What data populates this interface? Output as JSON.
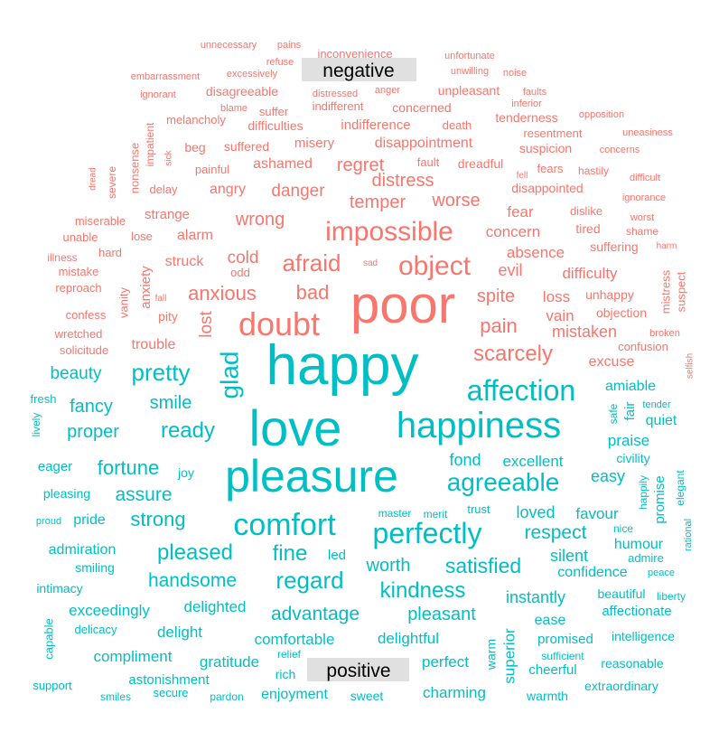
{
  "chart_data": {
    "type": "comparison-wordcloud",
    "groups": [
      {
        "name": "negative",
        "color": "#F8766D"
      },
      {
        "name": "positive",
        "color": "#00BFC4"
      }
    ],
    "words": [
      {
        "w": "poor",
        "g": "negative",
        "s": 58
      },
      {
        "w": "doubt",
        "g": "negative",
        "s": 36
      },
      {
        "w": "impossible",
        "g": "negative",
        "s": 30
      },
      {
        "w": "object",
        "g": "negative",
        "s": 30
      },
      {
        "w": "afraid",
        "g": "negative",
        "s": 26
      },
      {
        "w": "scarcely",
        "g": "negative",
        "s": 24
      },
      {
        "w": "anxious",
        "g": "negative",
        "s": 22
      },
      {
        "w": "bad",
        "g": "negative",
        "s": 22
      },
      {
        "w": "pain",
        "g": "negative",
        "s": 22
      },
      {
        "w": "spite",
        "g": "negative",
        "s": 20
      },
      {
        "w": "wrong",
        "g": "negative",
        "s": 20
      },
      {
        "w": "distress",
        "g": "negative",
        "s": 20
      },
      {
        "w": "temper",
        "g": "negative",
        "s": 20
      },
      {
        "w": "worse",
        "g": "negative",
        "s": 20
      },
      {
        "w": "regret",
        "g": "negative",
        "s": 20
      },
      {
        "w": "danger",
        "g": "negative",
        "s": 19
      },
      {
        "w": "cold",
        "g": "negative",
        "s": 19
      },
      {
        "w": "lost",
        "g": "negative",
        "s": 19
      },
      {
        "w": "evil",
        "g": "negative",
        "s": 18
      },
      {
        "w": "mistaken",
        "g": "negative",
        "s": 18
      },
      {
        "w": "loss",
        "g": "negative",
        "s": 17
      },
      {
        "w": "vain",
        "g": "negative",
        "s": 17
      },
      {
        "w": "difficulty",
        "g": "negative",
        "s": 17
      },
      {
        "w": "concern",
        "g": "negative",
        "s": 17
      },
      {
        "w": "absence",
        "g": "negative",
        "s": 17
      },
      {
        "w": "fear",
        "g": "negative",
        "s": 17
      },
      {
        "w": "disappointment",
        "g": "negative",
        "s": 16
      },
      {
        "w": "struck",
        "g": "negative",
        "s": 16
      },
      {
        "w": "alarm",
        "g": "negative",
        "s": 16
      },
      {
        "w": "ashamed",
        "g": "negative",
        "s": 16
      },
      {
        "w": "angry",
        "g": "negative",
        "s": 16
      },
      {
        "w": "trouble",
        "g": "negative",
        "s": 16
      },
      {
        "w": "excuse",
        "g": "negative",
        "s": 16
      },
      {
        "w": "strange",
        "g": "negative",
        "s": 15
      },
      {
        "w": "indifference",
        "g": "negative",
        "s": 15
      },
      {
        "w": "misery",
        "g": "negative",
        "s": 15
      },
      {
        "w": "anxiety",
        "g": "negative",
        "s": 15
      },
      {
        "w": "disappointed",
        "g": "negative",
        "s": 14
      },
      {
        "w": "suspicion",
        "g": "negative",
        "s": 14
      },
      {
        "w": "dreadful",
        "g": "negative",
        "s": 14
      },
      {
        "w": "unhappy",
        "g": "negative",
        "s": 14
      },
      {
        "w": "objection",
        "g": "negative",
        "s": 14
      },
      {
        "w": "suffering",
        "g": "negative",
        "s": 14
      },
      {
        "w": "pity",
        "g": "negative",
        "s": 14
      },
      {
        "w": "tired",
        "g": "negative",
        "s": 14
      },
      {
        "w": "disagreeable",
        "g": "negative",
        "s": 14
      },
      {
        "w": "unpleasant",
        "g": "negative",
        "s": 14
      },
      {
        "w": "difficulties",
        "g": "negative",
        "s": 14
      },
      {
        "w": "concerned",
        "g": "negative",
        "s": 14
      },
      {
        "w": "tenderness",
        "g": "negative",
        "s": 14
      },
      {
        "w": "suffered",
        "g": "negative",
        "s": 14
      },
      {
        "w": "beg",
        "g": "negative",
        "s": 14
      },
      {
        "w": "painful",
        "g": "negative",
        "s": 13
      },
      {
        "w": "delay",
        "g": "negative",
        "s": 13
      },
      {
        "w": "dislike",
        "g": "negative",
        "s": 13
      },
      {
        "w": "fears",
        "g": "negative",
        "s": 13
      },
      {
        "w": "resentment",
        "g": "negative",
        "s": 13
      },
      {
        "w": "indifferent",
        "g": "negative",
        "s": 13
      },
      {
        "w": "melancholy",
        "g": "negative",
        "s": 13
      },
      {
        "w": "suffer",
        "g": "negative",
        "s": 13
      },
      {
        "w": "death",
        "g": "negative",
        "s": 13
      },
      {
        "w": "fault",
        "g": "negative",
        "s": 13
      },
      {
        "w": "confusion",
        "g": "negative",
        "s": 13
      },
      {
        "w": "solicitude",
        "g": "negative",
        "s": 13
      },
      {
        "w": "confess",
        "g": "negative",
        "s": 13
      },
      {
        "w": "wretched",
        "g": "negative",
        "s": 13
      },
      {
        "w": "reproach",
        "g": "negative",
        "s": 13
      },
      {
        "w": "mistake",
        "g": "negative",
        "s": 13
      },
      {
        "w": "odd",
        "g": "negative",
        "s": 13
      },
      {
        "w": "hard",
        "g": "negative",
        "s": 13
      },
      {
        "w": "lose",
        "g": "negative",
        "s": 13
      },
      {
        "w": "miserable",
        "g": "negative",
        "s": 13
      },
      {
        "w": "unable",
        "g": "negative",
        "s": 13
      },
      {
        "w": "illness",
        "g": "negative",
        "s": 12
      },
      {
        "w": "vanity",
        "g": "negative",
        "s": 13
      },
      {
        "w": "mistress",
        "g": "negative",
        "s": 13
      },
      {
        "w": "suspect",
        "g": "negative",
        "s": 13
      },
      {
        "w": "nonsense",
        "g": "negative",
        "s": 13
      },
      {
        "w": "impatient",
        "g": "negative",
        "s": 12
      },
      {
        "w": "severe",
        "g": "negative",
        "s": 12
      },
      {
        "w": "hastily",
        "g": "negative",
        "s": 12
      },
      {
        "w": "shame",
        "g": "negative",
        "s": 12
      },
      {
        "w": "worst",
        "g": "negative",
        "s": 11
      },
      {
        "w": "ignorance",
        "g": "negative",
        "s": 11
      },
      {
        "w": "difficult",
        "g": "negative",
        "s": 11
      },
      {
        "w": "concerns",
        "g": "negative",
        "s": 11
      },
      {
        "w": "uneasiness",
        "g": "negative",
        "s": 11
      },
      {
        "w": "opposition",
        "g": "negative",
        "s": 11
      },
      {
        "w": "faults",
        "g": "negative",
        "s": 11
      },
      {
        "w": "inferior",
        "g": "negative",
        "s": 11
      },
      {
        "w": "noise",
        "g": "negative",
        "s": 11
      },
      {
        "w": "unwilling",
        "g": "negative",
        "s": 11
      },
      {
        "w": "unfortunate",
        "g": "negative",
        "s": 11
      },
      {
        "w": "inconvenience",
        "g": "negative",
        "s": 13
      },
      {
        "w": "unnecessary",
        "g": "negative",
        "s": 11
      },
      {
        "w": "pains",
        "g": "negative",
        "s": 11
      },
      {
        "w": "refuse",
        "g": "negative",
        "s": 11
      },
      {
        "w": "excessively",
        "g": "negative",
        "s": 11
      },
      {
        "w": "embarrassment",
        "g": "negative",
        "s": 11
      },
      {
        "w": "ignorant",
        "g": "negative",
        "s": 11
      },
      {
        "w": "distressed",
        "g": "negative",
        "s": 11
      },
      {
        "w": "anger",
        "g": "negative",
        "s": 11
      },
      {
        "w": "blame",
        "g": "negative",
        "s": 11
      },
      {
        "w": "sick",
        "g": "negative",
        "s": 10
      },
      {
        "w": "dread",
        "g": "negative",
        "s": 10
      },
      {
        "w": "fell",
        "g": "negative",
        "s": 10
      },
      {
        "w": "harm",
        "g": "negative",
        "s": 10
      },
      {
        "w": "broken",
        "g": "negative",
        "s": 11
      },
      {
        "w": "selfish",
        "g": "negative",
        "s": 10
      },
      {
        "w": "fall",
        "g": "negative",
        "s": 10
      },
      {
        "w": "sad",
        "g": "negative",
        "s": 10
      },
      {
        "w": "happy",
        "g": "positive",
        "s": 62
      },
      {
        "w": "love",
        "g": "positive",
        "s": 56
      },
      {
        "w": "pleasure",
        "g": "positive",
        "s": 50
      },
      {
        "w": "happiness",
        "g": "positive",
        "s": 40
      },
      {
        "w": "comfort",
        "g": "positive",
        "s": 34
      },
      {
        "w": "affection",
        "g": "positive",
        "s": 32
      },
      {
        "w": "perfectly",
        "g": "positive",
        "s": 32
      },
      {
        "w": "agreeable",
        "g": "positive",
        "s": 28
      },
      {
        "w": "glad",
        "g": "positive",
        "s": 28
      },
      {
        "w": "pretty",
        "g": "positive",
        "s": 26
      },
      {
        "w": "ready",
        "g": "positive",
        "s": 24
      },
      {
        "w": "regard",
        "g": "positive",
        "s": 26
      },
      {
        "w": "fine",
        "g": "positive",
        "s": 24
      },
      {
        "w": "pleased",
        "g": "positive",
        "s": 24
      },
      {
        "w": "kindness",
        "g": "positive",
        "s": 24
      },
      {
        "w": "satisfied",
        "g": "positive",
        "s": 23
      },
      {
        "w": "fortune",
        "g": "positive",
        "s": 22
      },
      {
        "w": "strong",
        "g": "positive",
        "s": 22
      },
      {
        "w": "assure",
        "g": "positive",
        "s": 21
      },
      {
        "w": "respect",
        "g": "positive",
        "s": 21
      },
      {
        "w": "handsome",
        "g": "positive",
        "s": 21
      },
      {
        "w": "advantage",
        "g": "positive",
        "s": 21
      },
      {
        "w": "worth",
        "g": "positive",
        "s": 20
      },
      {
        "w": "pleasant",
        "g": "positive",
        "s": 20
      },
      {
        "w": "smile",
        "g": "positive",
        "s": 20
      },
      {
        "w": "fancy",
        "g": "positive",
        "s": 20
      },
      {
        "w": "proper",
        "g": "positive",
        "s": 20
      },
      {
        "w": "beauty",
        "g": "positive",
        "s": 19
      },
      {
        "w": "instantly",
        "g": "positive",
        "s": 18
      },
      {
        "w": "loved",
        "g": "positive",
        "s": 18
      },
      {
        "w": "fond",
        "g": "positive",
        "s": 18
      },
      {
        "w": "easy",
        "g": "positive",
        "s": 18
      },
      {
        "w": "silent",
        "g": "positive",
        "s": 18
      },
      {
        "w": "favour",
        "g": "positive",
        "s": 17
      },
      {
        "w": "excellent",
        "g": "positive",
        "s": 17
      },
      {
        "w": "delightful",
        "g": "positive",
        "s": 17
      },
      {
        "w": "comfortable",
        "g": "positive",
        "s": 17
      },
      {
        "w": "delighted",
        "g": "positive",
        "s": 17
      },
      {
        "w": "exceedingly",
        "g": "positive",
        "s": 17
      },
      {
        "w": "gratitude",
        "g": "positive",
        "s": 17
      },
      {
        "w": "delight",
        "g": "positive",
        "s": 17
      },
      {
        "w": "compliment",
        "g": "positive",
        "s": 17
      },
      {
        "w": "perfect",
        "g": "positive",
        "s": 17
      },
      {
        "w": "superior",
        "g": "positive",
        "s": 17
      },
      {
        "w": "charming",
        "g": "positive",
        "s": 17
      },
      {
        "w": "enjoyment",
        "g": "positive",
        "s": 16
      },
      {
        "w": "admiration",
        "g": "positive",
        "s": 16
      },
      {
        "w": "pride",
        "g": "positive",
        "s": 16
      },
      {
        "w": "confidence",
        "g": "positive",
        "s": 16
      },
      {
        "w": "humour",
        "g": "positive",
        "s": 16
      },
      {
        "w": "amiable",
        "g": "positive",
        "s": 16
      },
      {
        "w": "praise",
        "g": "positive",
        "s": 17
      },
      {
        "w": "quiet",
        "g": "positive",
        "s": 16
      },
      {
        "w": "ease",
        "g": "positive",
        "s": 16
      },
      {
        "w": "eager",
        "g": "positive",
        "s": 15
      },
      {
        "w": "fair",
        "g": "positive",
        "s": 15
      },
      {
        "w": "promise",
        "g": "positive",
        "s": 15
      },
      {
        "w": "led",
        "g": "positive",
        "s": 15
      },
      {
        "w": "astonishment",
        "g": "positive",
        "s": 15
      },
      {
        "w": "promised",
        "g": "positive",
        "s": 15
      },
      {
        "w": "cheerful",
        "g": "positive",
        "s": 15
      },
      {
        "w": "affectionate",
        "g": "positive",
        "s": 15
      },
      {
        "w": "beautiful",
        "g": "positive",
        "s": 14
      },
      {
        "w": "intelligence",
        "g": "positive",
        "s": 14
      },
      {
        "w": "reasonable",
        "g": "positive",
        "s": 14
      },
      {
        "w": "extraordinary",
        "g": "positive",
        "s": 14
      },
      {
        "w": "warmth",
        "g": "positive",
        "s": 14
      },
      {
        "w": "sweet",
        "g": "positive",
        "s": 14
      },
      {
        "w": "smiling",
        "g": "positive",
        "s": 14
      },
      {
        "w": "intimacy",
        "g": "positive",
        "s": 14
      },
      {
        "w": "pleasing",
        "g": "positive",
        "s": 14
      },
      {
        "w": "rich",
        "g": "positive",
        "s": 14
      },
      {
        "w": "warm",
        "g": "positive",
        "s": 14
      },
      {
        "w": "civility",
        "g": "positive",
        "s": 14
      },
      {
        "w": "joy",
        "g": "positive",
        "s": 14
      },
      {
        "w": "capable",
        "g": "positive",
        "s": 13
      },
      {
        "w": "support",
        "g": "positive",
        "s": 13
      },
      {
        "w": "delicacy",
        "g": "positive",
        "s": 13
      },
      {
        "w": "smiles",
        "g": "positive",
        "s": 12
      },
      {
        "w": "secure",
        "g": "positive",
        "s": 13
      },
      {
        "w": "pardon",
        "g": "positive",
        "s": 12
      },
      {
        "w": "relief",
        "g": "positive",
        "s": 12
      },
      {
        "w": "sufficient",
        "g": "positive",
        "s": 12
      },
      {
        "w": "trust",
        "g": "positive",
        "s": 13
      },
      {
        "w": "merit",
        "g": "positive",
        "s": 12
      },
      {
        "w": "master",
        "g": "positive",
        "s": 12
      },
      {
        "w": "nice",
        "g": "positive",
        "s": 12
      },
      {
        "w": "admire",
        "g": "positive",
        "s": 13
      },
      {
        "w": "peace",
        "g": "positive",
        "s": 11
      },
      {
        "w": "liberty",
        "g": "positive",
        "s": 12
      },
      {
        "w": "safe",
        "g": "positive",
        "s": 12
      },
      {
        "w": "happily",
        "g": "positive",
        "s": 12
      },
      {
        "w": "elegant",
        "g": "positive",
        "s": 12
      },
      {
        "w": "rational",
        "g": "positive",
        "s": 11
      },
      {
        "w": "tender",
        "g": "positive",
        "s": 11
      },
      {
        "w": "fresh",
        "g": "positive",
        "s": 13
      },
      {
        "w": "lively",
        "g": "positive",
        "s": 12
      },
      {
        "w": "proud",
        "g": "positive",
        "s": 11
      }
    ]
  }
}
